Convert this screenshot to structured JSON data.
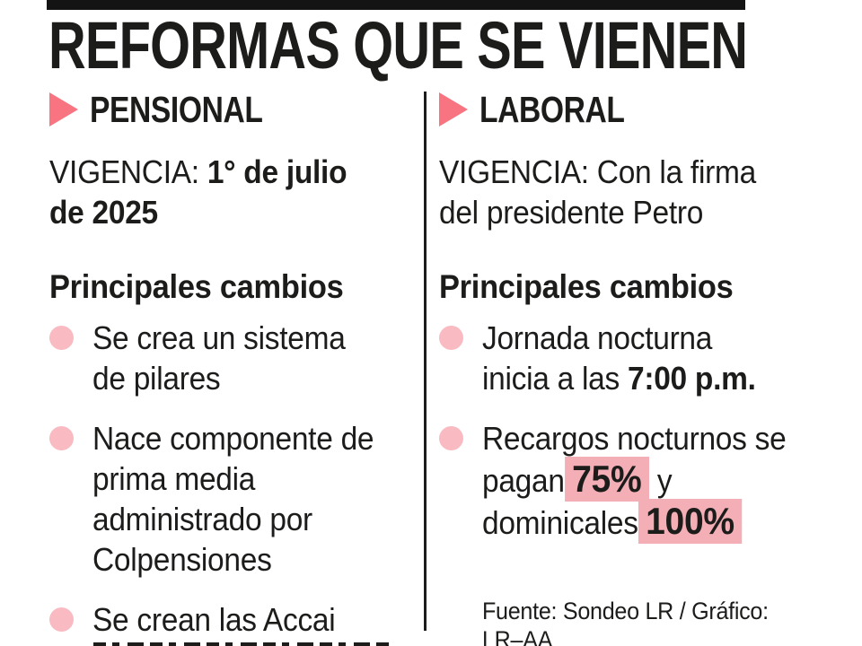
{
  "title": "REFORMAS QUE SE VIENEN",
  "colors": {
    "accent_pink": "#f87480",
    "bullet_pink": "#f9bac2",
    "highlight_pink": "#f4aeb6",
    "text": "#1c1c1a",
    "bar_black": "#141414"
  },
  "columns": [
    {
      "header": "PENSIONAL",
      "vigencia": [
        {
          "t": "VIGENCIA: ",
          "s": "normal"
        },
        {
          "t": "1° de julio\nde 2025",
          "s": "bold"
        }
      ],
      "changes_heading": "Principales cambios",
      "bullets": [
        {
          "segments": [
            {
              "t": "Se crea un sistema\nde pilares",
              "s": "normal"
            }
          ]
        },
        {
          "segments": [
            {
              "t": "Nace componente de\nprima media\nadministrado por\nColpensiones",
              "s": "normal"
            }
          ]
        },
        {
          "segments": [
            {
              "t": "Se crean las Accai",
              "s": "normal"
            }
          ]
        }
      ]
    },
    {
      "header": "LABORAL",
      "vigencia": [
        {
          "t": "VIGENCIA: Con la firma\ndel presidente Petro",
          "s": "normal"
        }
      ],
      "changes_heading": "Principales cambios",
      "bullets": [
        {
          "segments": [
            {
              "t": "Jornada nocturna\ninicia a las ",
              "s": "normal"
            },
            {
              "t": "7:00 p.m.",
              "s": "bold"
            }
          ]
        },
        {
          "segments": [
            {
              "t": "Recargos nocturnos se\npagan",
              "s": "normal"
            },
            {
              "t": "75%",
              "s": "highlight"
            },
            {
              "t": " y\ndominicales",
              "s": "normal"
            },
            {
              "t": "100%",
              "s": "highlight"
            }
          ]
        }
      ]
    }
  ],
  "footer": {
    "source": "Fuente: Sondeo LR / Gráfico: LR–AA"
  }
}
